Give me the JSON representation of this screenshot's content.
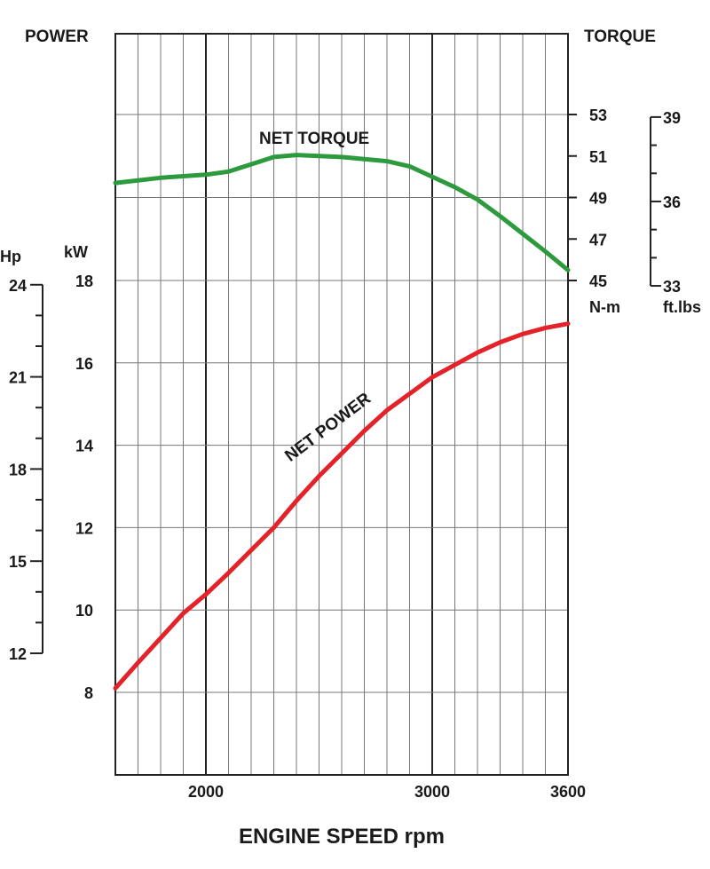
{
  "chart_data": {
    "type": "line",
    "xlabel": "ENGINE SPEED rpm",
    "x_ticks": [
      2000,
      3000,
      3600
    ],
    "xlim": [
      1600,
      3600
    ],
    "grid": true,
    "left_header": "POWER",
    "right_header": "TORQUE",
    "axes": {
      "kw": {
        "label": "kW",
        "ticks": [
          8,
          10,
          12,
          14,
          16,
          18
        ],
        "range": [
          6,
          24
        ]
      },
      "hp": {
        "label": "Hp",
        "ticks": [
          12,
          15,
          18,
          21,
          24
        ]
      },
      "nm": {
        "label": "N-m",
        "ticks": [
          45,
          47,
          49,
          51,
          53
        ],
        "range": [
          45,
          57
        ]
      },
      "ftlbs": {
        "label": "ft.lbs",
        "ticks": [
          33,
          36,
          39
        ]
      }
    },
    "colors": {
      "torque": "#2e9a3e",
      "power": "#e3222a",
      "grid": "#555555"
    },
    "series": [
      {
        "name": "NET TORQUE",
        "axis": "nm",
        "x": [
          1600,
          1800,
          2000,
          2100,
          2200,
          2300,
          2400,
          2600,
          2800,
          2900,
          3000,
          3100,
          3200,
          3300,
          3400,
          3500,
          3600
        ],
        "values": [
          49.7,
          49.95,
          50.1,
          50.25,
          50.6,
          50.95,
          51.05,
          50.95,
          50.75,
          50.5,
          50.0,
          49.5,
          48.9,
          48.1,
          47.25,
          46.4,
          45.5
        ]
      },
      {
        "name": "NET POWER",
        "axis": "kw",
        "x": [
          1600,
          1700,
          1800,
          1900,
          2000,
          2100,
          2200,
          2300,
          2400,
          2500,
          2600,
          2700,
          2800,
          2900,
          3000,
          3100,
          3200,
          3300,
          3400,
          3500,
          3600
        ],
        "values": [
          8.1,
          8.72,
          9.32,
          9.92,
          10.38,
          10.9,
          11.45,
          12.0,
          12.65,
          13.25,
          13.8,
          14.35,
          14.85,
          15.25,
          15.65,
          15.95,
          16.25,
          16.5,
          16.7,
          16.85,
          16.95
        ]
      }
    ]
  }
}
